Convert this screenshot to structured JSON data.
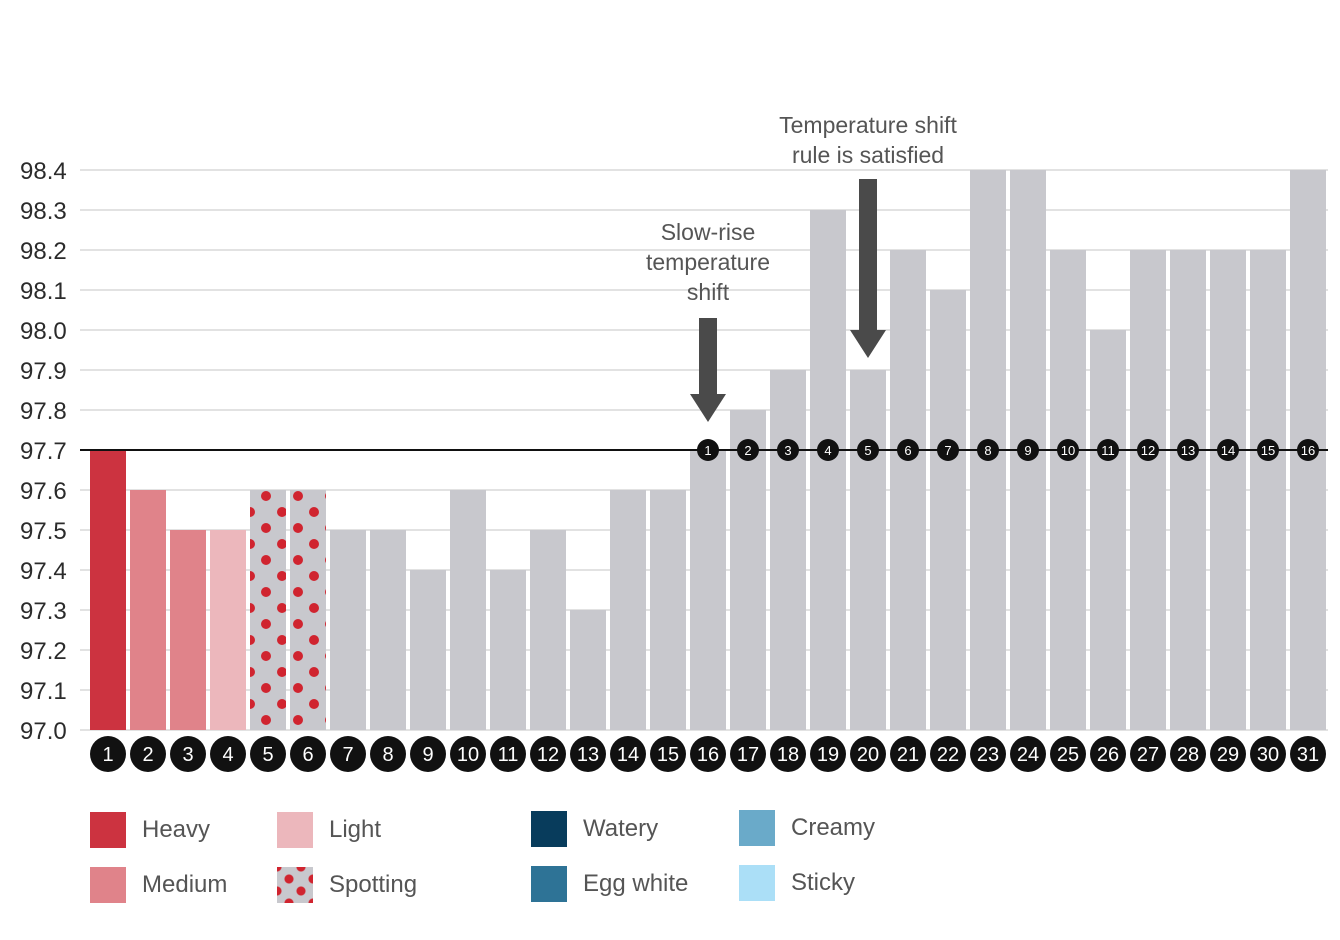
{
  "chart_data": {
    "type": "bar",
    "title": "",
    "xlabel": "",
    "ylabel": "",
    "ylim": [
      97.0,
      98.4
    ],
    "grid": true,
    "yticks": [
      "98.4",
      "98.3",
      "98.2",
      "98.1",
      "98.0",
      "97.9",
      "97.8",
      "97.7",
      "97.6",
      "97.5",
      "97.4",
      "97.3",
      "97.2",
      "97.1",
      "97.0"
    ],
    "categories": [
      "1",
      "2",
      "3",
      "4",
      "5",
      "6",
      "7",
      "8",
      "9",
      "10",
      "11",
      "12",
      "13",
      "14",
      "15",
      "16",
      "17",
      "18",
      "19",
      "20",
      "21",
      "22",
      "23",
      "24",
      "25",
      "26",
      "27",
      "28",
      "29",
      "30",
      "31"
    ],
    "values": [
      97.7,
      97.6,
      97.5,
      97.5,
      97.6,
      97.6,
      97.5,
      97.5,
      97.4,
      97.6,
      97.4,
      97.5,
      97.3,
      97.6,
      97.6,
      97.7,
      97.8,
      97.9,
      98.3,
      97.9,
      98.2,
      98.1,
      98.4,
      98.4,
      98.2,
      98.0,
      98.2,
      98.2,
      98.2,
      98.2,
      98.4
    ],
    "bleeding": [
      "Heavy",
      "Medium",
      "Medium",
      "Light",
      "Spotting",
      "Spotting",
      "",
      "",
      "",
      "",
      "",
      "",
      "",
      "",
      "",
      "",
      "",
      "",
      "",
      "",
      "",
      "",
      "",
      "",
      "",
      "",
      "",
      "",
      "",
      "",
      ""
    ],
    "coverline": 97.7,
    "post_shift_start_day": 16,
    "post_shift_labels": [
      "1",
      "2",
      "3",
      "4",
      "5",
      "6",
      "7",
      "8",
      "9",
      "10",
      "11",
      "12",
      "13",
      "14",
      "15",
      "16"
    ],
    "annotations": [
      {
        "day": 16,
        "lines": [
          "Slow-rise",
          "temperature",
          "shift"
        ]
      },
      {
        "day": 20,
        "lines": [
          "Temperature shift",
          "rule is satisfied"
        ]
      }
    ],
    "colors": {
      "Heavy": "#cc3340",
      "Medium": "#e0838a",
      "Light": "#ecb7bc",
      "Spotting": "#d0242f",
      "default": "#c8c8cd",
      "grid": "#d9d9d9",
      "coverline": "#111111",
      "badge": "#111111",
      "arrow": "#4a4a4a"
    }
  },
  "legend": [
    {
      "label": "Heavy",
      "color": "#cc3340"
    },
    {
      "label": "Medium",
      "color": "#e0838a"
    },
    {
      "label": "Light",
      "color": "#ecb7bc"
    },
    {
      "label": "Spotting",
      "color": "#d0242f"
    },
    {
      "label": "Watery",
      "color": "#083c5c"
    },
    {
      "label": "Egg white",
      "color": "#2e7396"
    },
    {
      "label": "Creamy",
      "color": "#6aaac9"
    },
    {
      "label": "Sticky",
      "color": "#abdff7"
    }
  ]
}
